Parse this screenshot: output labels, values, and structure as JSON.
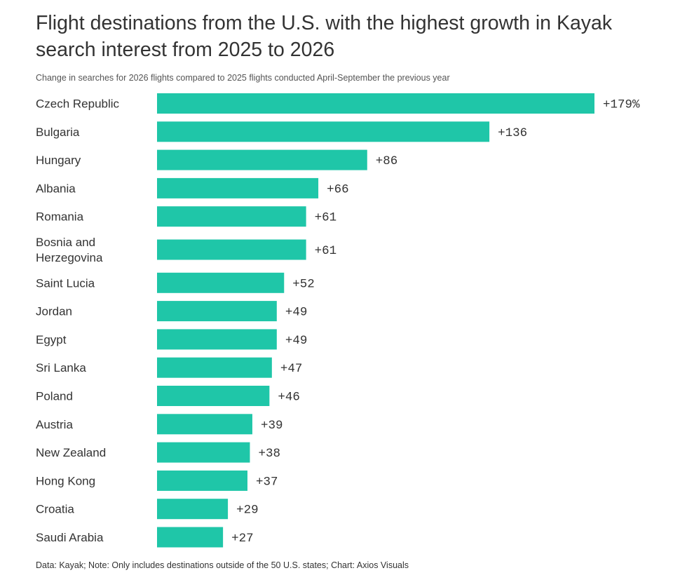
{
  "title": "Flight destinations from the U.S. with the highest growth in Kayak search interest from 2025 to 2026",
  "subtitle": "Change in searches for 2026 flights compared to 2025 flights conducted April-September the previous year",
  "footer": "Data: Kayak; Note: Only includes destinations outside of the 50 U.S. states; Chart: Axios Visuals",
  "colors": {
    "bar": "#1fc6a8",
    "text": "#333333"
  },
  "chart_data": {
    "type": "bar",
    "orientation": "horizontal",
    "title": "Flight destinations from the U.S. with the highest growth in Kayak search interest from 2025 to 2026",
    "subtitle": "Change in searches for 2026 flights compared to 2025 flights conducted April-September the previous year",
    "xlabel": "",
    "ylabel": "",
    "unit": "%",
    "xlim": [
      0,
      179
    ],
    "grid": false,
    "categories": [
      [
        "Czech Republic"
      ],
      [
        "Bulgaria"
      ],
      [
        "Hungary"
      ],
      [
        "Albania"
      ],
      [
        "Romania"
      ],
      [
        "Bosnia and",
        "Herzegovina"
      ],
      [
        "Saint Lucia"
      ],
      [
        "Jordan"
      ],
      [
        "Egypt"
      ],
      [
        "Sri Lanka"
      ],
      [
        "Poland"
      ],
      [
        "Austria"
      ],
      [
        "New Zealand"
      ],
      [
        "Hong Kong"
      ],
      [
        "Croatia"
      ],
      [
        "Saudi Arabia"
      ]
    ],
    "values": [
      179,
      136,
      86,
      66,
      61,
      61,
      52,
      49,
      49,
      47,
      46,
      39,
      38,
      37,
      29,
      27
    ],
    "labels": [
      "+179%",
      "+136",
      "+86",
      "+66",
      "+61",
      "+61",
      "+52",
      "+49",
      "+49",
      "+47",
      "+46",
      "+39",
      "+38",
      "+37",
      "+29",
      "+27"
    ]
  }
}
